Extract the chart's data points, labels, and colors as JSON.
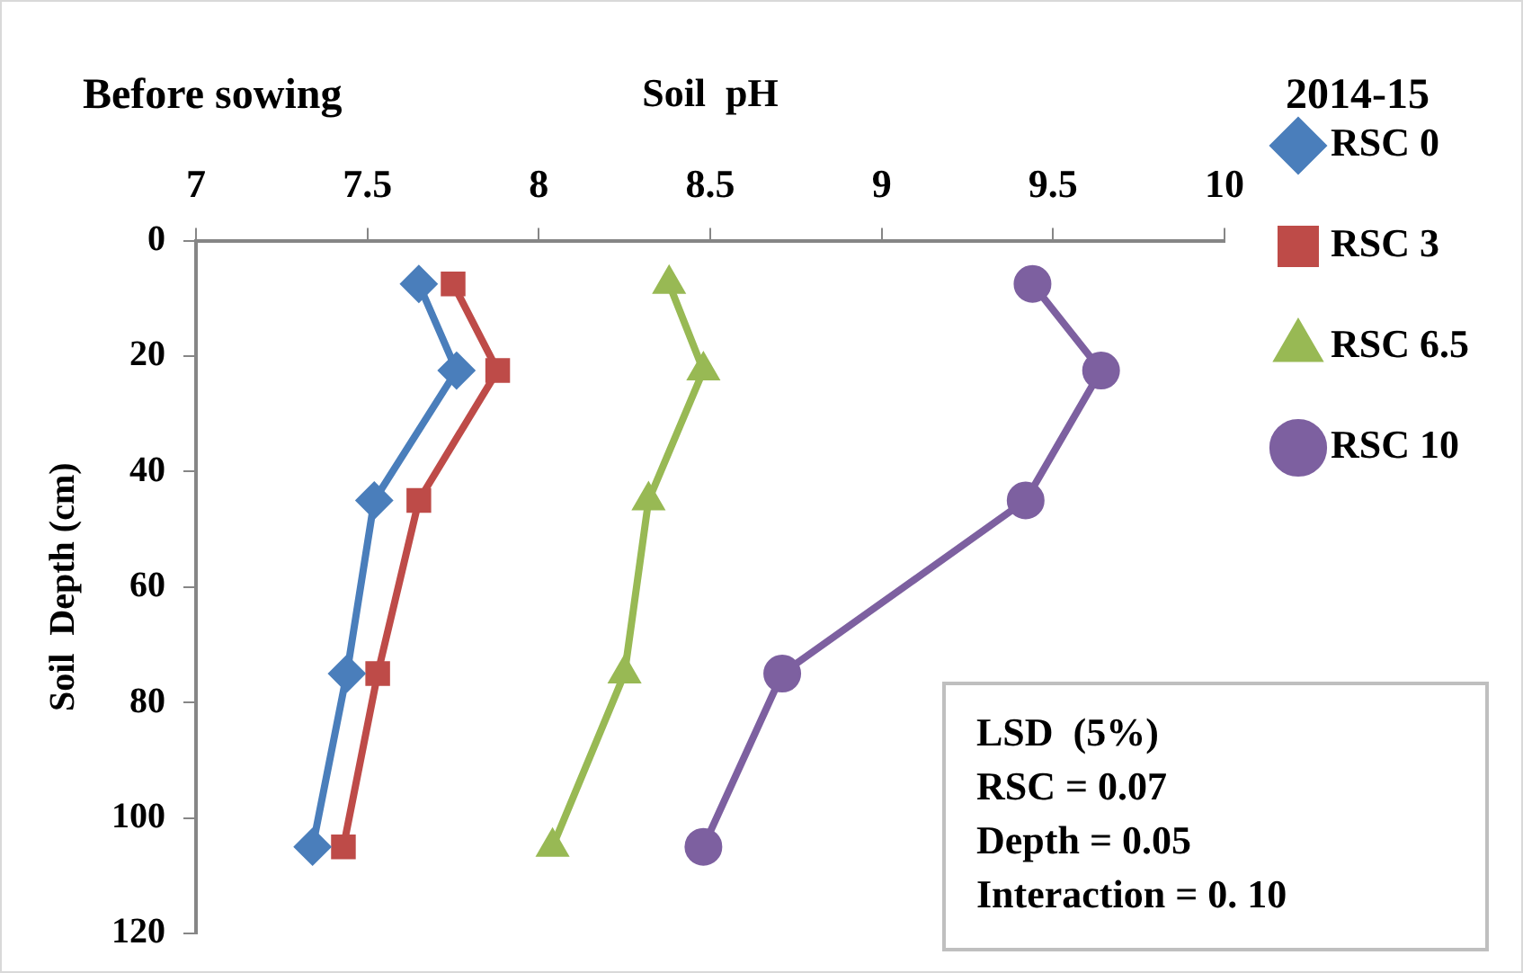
{
  "chart_data": {
    "type": "line",
    "title": "Before sowing",
    "subtitle": "2014-15",
    "xlabel": "Soil  pH",
    "ylabel": "Soil  Depth (cm)",
    "xlim": [
      7,
      10
    ],
    "xticks": [
      7,
      7.5,
      8,
      8.5,
      9,
      9.5,
      10
    ],
    "ylim": [
      120,
      0
    ],
    "yticks": [
      0,
      20,
      40,
      60,
      80,
      100,
      120
    ],
    "grid": false,
    "legend": "right",
    "line_style": "solid",
    "series": [
      {
        "name": "RSC 0",
        "color": "#4a7ebb",
        "marker": "diamond",
        "x": [
          7.65,
          7.76,
          7.52,
          7.44,
          7.34
        ],
        "values": [
          7.5,
          22.5,
          45,
          75,
          105
        ]
      },
      {
        "name": "RSC 3",
        "color": "#be4b48",
        "marker": "square",
        "x": [
          7.75,
          7.88,
          7.65,
          7.53,
          7.43
        ],
        "values": [
          7.5,
          22.5,
          45,
          75,
          105
        ]
      },
      {
        "name": "RSC 6.5",
        "color": "#98b954",
        "marker": "triangle",
        "x": [
          8.38,
          8.48,
          8.32,
          8.25,
          8.04
        ],
        "values": [
          7.5,
          22.5,
          45,
          75,
          105
        ]
      },
      {
        "name": "RSC 10",
        "color": "#7d60a0",
        "marker": "circle",
        "x": [
          9.44,
          9.64,
          9.42,
          8.71,
          8.48
        ],
        "values": [
          7.5,
          22.5,
          45,
          75,
          105
        ]
      }
    ],
    "annotations": [
      "LSD  (5%)",
      "RSC = 0.07",
      "Depth = 0.05",
      "Interaction = 0. 10"
    ]
  }
}
